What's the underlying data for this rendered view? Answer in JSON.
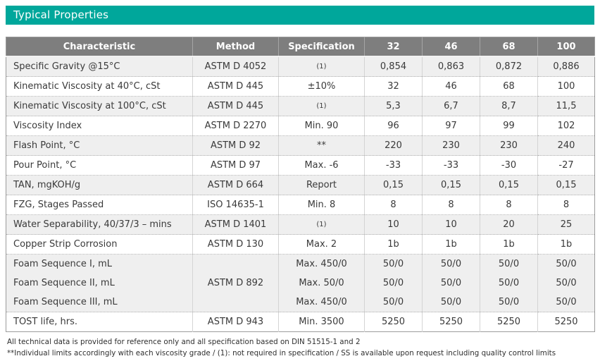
{
  "colors": {
    "accent_teal": "#00a79b",
    "table_header_gray": "#7e7e7e",
    "row_shaded": "#efefef"
  },
  "header": {
    "title": "Typical Properties"
  },
  "table": {
    "headers": [
      "Characteristic",
      "Method",
      "Specification",
      "32",
      "46",
      "68",
      "100"
    ],
    "rows": [
      {
        "characteristic": "Specific Gravity @15°C",
        "method": "ASTM D 4052",
        "spec": "(1)",
        "spec_small": true,
        "values": [
          "0,854",
          "0,863",
          "0,872",
          "0,886"
        ],
        "shaded": true
      },
      {
        "characteristic": "Kinematic Viscosity at 40°C, cSt",
        "method": "ASTM D 445",
        "spec": "±10%",
        "spec_small": false,
        "values": [
          "32",
          "46",
          "68",
          "100"
        ],
        "shaded": false
      },
      {
        "characteristic": "Kinematic Viscosity at 100°C, cSt",
        "method": "ASTM D 445",
        "spec": "(1)",
        "spec_small": true,
        "values": [
          "5,3",
          "6,7",
          "8,7",
          "11,5"
        ],
        "shaded": true
      },
      {
        "characteristic": "Viscosity Index",
        "method": "ASTM D 2270",
        "spec": "Min. 90",
        "spec_small": false,
        "values": [
          "96",
          "97",
          "99",
          "102"
        ],
        "shaded": false
      },
      {
        "characteristic": "Flash Point, °C",
        "method": "ASTM D 92",
        "spec": "**",
        "spec_small": false,
        "values": [
          "220",
          "230",
          "230",
          "240"
        ],
        "shaded": true
      },
      {
        "characteristic": "Pour Point, °C",
        "method": "ASTM D 97",
        "spec": "Max. -6",
        "spec_small": false,
        "values": [
          "-33",
          "-33",
          "-30",
          "-27"
        ],
        "shaded": false
      },
      {
        "characteristic": "TAN, mgKOH/g",
        "method": "ASTM D 664",
        "spec": "Report",
        "spec_small": false,
        "values": [
          "0,15",
          "0,15",
          "0,15",
          "0,15"
        ],
        "shaded": true
      },
      {
        "characteristic": "FZG, Stages Passed",
        "method": "ISO 14635-1",
        "spec": "Min. 8",
        "spec_small": false,
        "values": [
          "8",
          "8",
          "8",
          "8"
        ],
        "shaded": false
      },
      {
        "characteristic": "Water Separability, 40/37/3 – mins",
        "method": "ASTM D 1401",
        "spec": "(1)",
        "spec_small": true,
        "values": [
          "10",
          "10",
          "20",
          "25"
        ],
        "shaded": true
      },
      {
        "characteristic": "Copper Strip Corrosion",
        "method": "ASTM D 130",
        "spec": "Max. 2",
        "spec_small": false,
        "values": [
          "1b",
          "1b",
          "1b",
          "1b"
        ],
        "shaded": false
      },
      {
        "characteristic": "Foam Sequence I, mL",
        "method": "ASTM D 892",
        "method_rowspan": 3,
        "spec": "Max. 450/0",
        "spec_small": false,
        "values": [
          "50/0",
          "50/0",
          "50/0",
          "50/0"
        ],
        "shaded": true
      },
      {
        "characteristic": "Foam Sequence II, mL",
        "method": null,
        "spec": "Max. 50/0",
        "spec_small": false,
        "values": [
          "50/0",
          "50/0",
          "50/0",
          "50/0"
        ],
        "shaded": true,
        "no_top_border": true
      },
      {
        "characteristic": "Foam Sequence III, mL",
        "method": null,
        "spec": "Max. 450/0",
        "spec_small": false,
        "values": [
          "50/0",
          "50/0",
          "50/0",
          "50/0"
        ],
        "shaded": true,
        "no_top_border": true
      },
      {
        "characteristic": "TOST life, hrs.",
        "method": "ASTM D 943",
        "spec": "Min. 3500",
        "spec_small": false,
        "values": [
          "5250",
          "5250",
          "5250",
          "5250"
        ],
        "shaded": false
      }
    ]
  },
  "footnotes": [
    "All technical data is provided for reference only and all specification based on DIN 51515-1 and 2",
    "**Individual limits accordingly with each viscosity grade / (1): not required in specification / SS is available upon request including quality control limits"
  ]
}
